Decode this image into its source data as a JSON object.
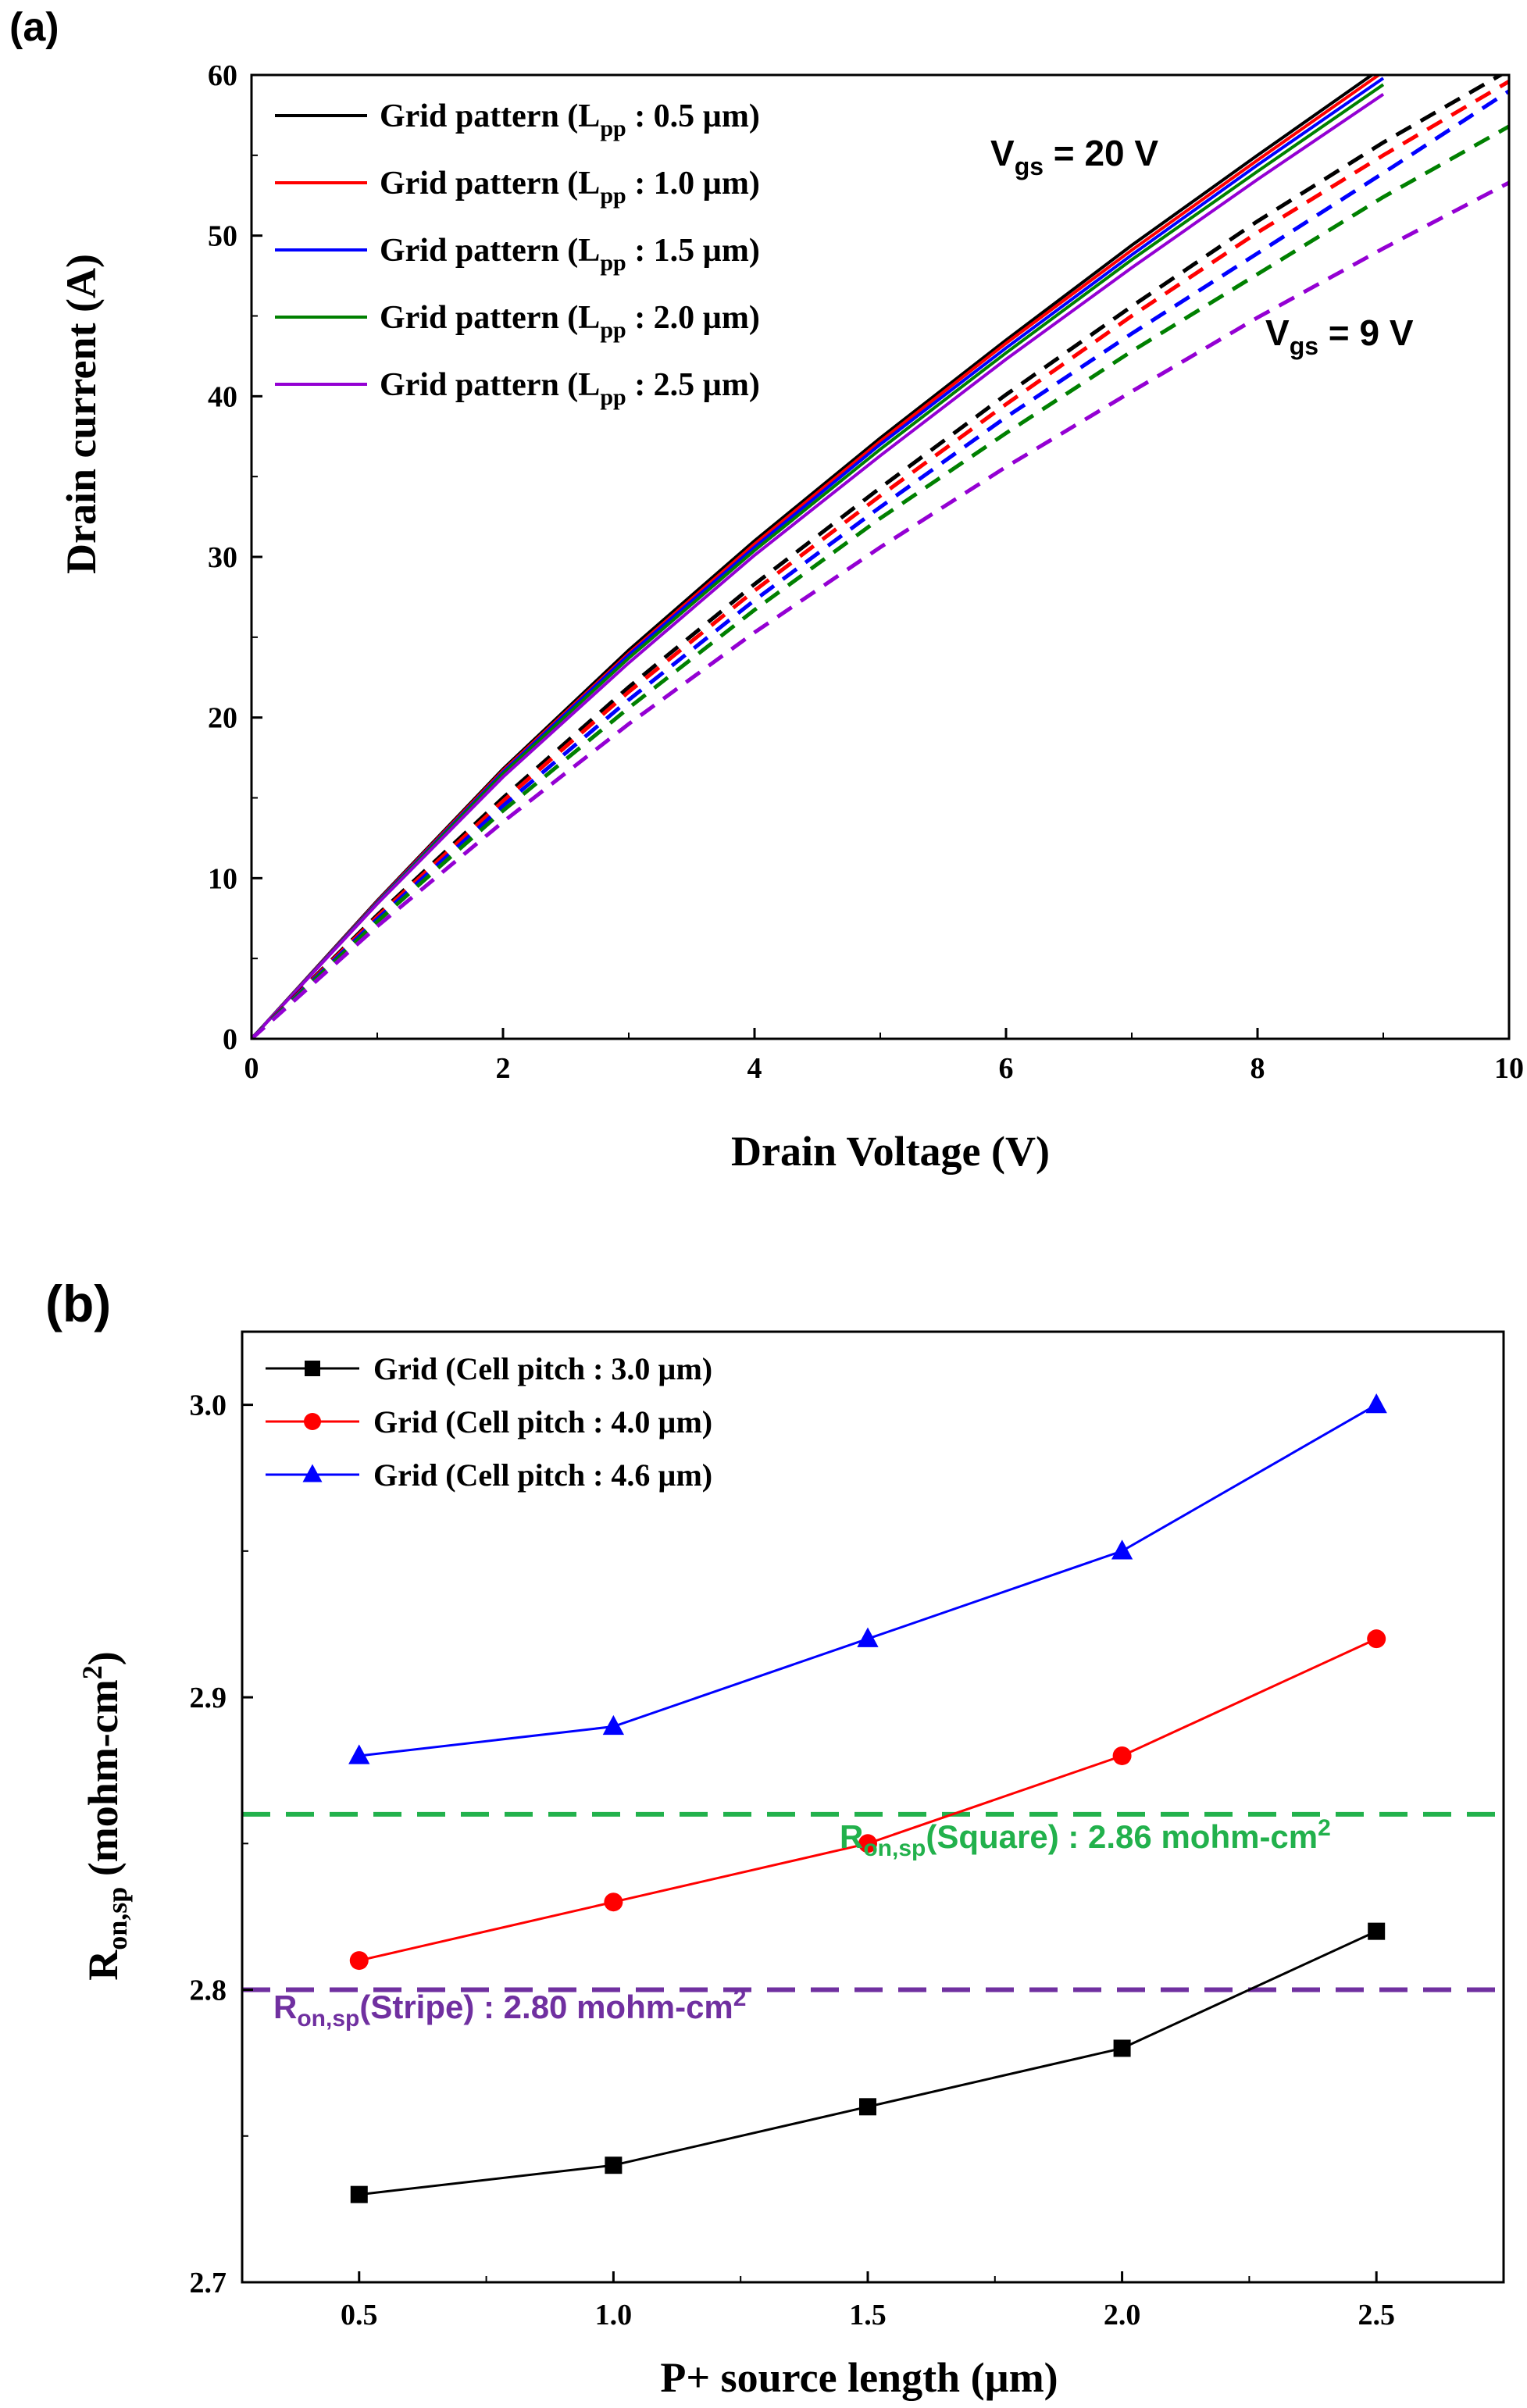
{
  "chart_data": [
    {
      "type": "line",
      "panel_label": "(a)",
      "xlabel": "Drain Voltage (V)",
      "ylabel": "Drain current (A)",
      "xlim": [
        0,
        10
      ],
      "ylim": [
        0,
        60
      ],
      "xticks": [
        "0",
        "2",
        "4",
        "6",
        "8",
        "10"
      ],
      "yticks": [
        "0",
        "10",
        "20",
        "30",
        "40",
        "50",
        "60"
      ],
      "legend_position": "top-left",
      "legend": [
        {
          "prefix": "Grid pattern (L",
          "sub": "pp",
          "suffix": " : 0.5 µm)",
          "color": "#000000"
        },
        {
          "prefix": "Grid pattern (L",
          "sub": "pp",
          "suffix": " : 1.0 µm)",
          "color": "#ff0000"
        },
        {
          "prefix": "Grid pattern (L",
          "sub": "pp",
          "suffix": " : 1.5 µm)",
          "color": "#0000ff"
        },
        {
          "prefix": "Grid pattern (L",
          "sub": "pp",
          "suffix": " : 2.0 µm)",
          "color": "#008000"
        },
        {
          "prefix": "Grid pattern (L",
          "sub": "pp",
          "suffix": " : 2.5 µm)",
          "color": "#9400d3"
        }
      ],
      "annotations": [
        {
          "main": "V",
          "sub": "gs",
          "rest": " = 20 V"
        },
        {
          "main": "V",
          "sub": "gs",
          "rest": " = 9 V"
        }
      ],
      "x": [
        0,
        1,
        2,
        3,
        4,
        5,
        6,
        7,
        8,
        9,
        10
      ],
      "series_vgs20": [
        {
          "name": "Grid pattern (Lpp : 0.5 µm)",
          "color": "#000000",
          "values": [
            0,
            8.6,
            16.8,
            24.2,
            31.0,
            37.4,
            43.5,
            49.4,
            55.0,
            60.5,
            null
          ]
        },
        {
          "name": "Grid pattern (Lpp : 1.0 µm)",
          "color": "#ff0000",
          "values": [
            0,
            8.55,
            16.7,
            24.0,
            30.8,
            37.2,
            43.3,
            49.1,
            54.7,
            60.2,
            null
          ]
        },
        {
          "name": "Grid pattern (Lpp : 1.5 µm)",
          "color": "#0000ff",
          "values": [
            0,
            8.5,
            16.6,
            23.9,
            30.6,
            37.0,
            43.0,
            48.8,
            54.4,
            59.8,
            null
          ]
        },
        {
          "name": "Grid pattern (Lpp : 2.0 µm)",
          "color": "#008000",
          "values": [
            0,
            8.45,
            16.5,
            23.7,
            30.4,
            36.7,
            42.7,
            48.5,
            54.0,
            59.4,
            null
          ]
        },
        {
          "name": "Grid pattern (Lpp : 2.5 µm)",
          "color": "#9400d3",
          "values": [
            0,
            8.4,
            16.3,
            23.4,
            30.1,
            36.3,
            42.3,
            48.0,
            53.5,
            58.8,
            null
          ]
        }
      ],
      "series_vgs9": [
        {
          "name": "Grid pattern (Lpp : 0.5 µm)",
          "color": "#000000",
          "values": [
            0,
            7.7,
            15.0,
            21.9,
            28.3,
            34.3,
            40.1,
            45.6,
            50.9,
            55.8,
            60.3
          ]
        },
        {
          "name": "Grid pattern (Lpp : 1.0 µm)",
          "color": "#ff0000",
          "values": [
            0,
            7.6,
            14.8,
            21.6,
            27.9,
            33.8,
            39.5,
            45.0,
            50.2,
            55.0,
            59.6
          ]
        },
        {
          "name": "Grid pattern (Lpp : 1.5 µm)",
          "color": "#0000ff",
          "values": [
            0,
            7.45,
            14.5,
            21.1,
            27.3,
            33.1,
            38.7,
            43.9,
            48.9,
            53.9,
            59.0
          ]
        },
        {
          "name": "Grid pattern (Lpp : 2.0 µm)",
          "color": "#008000",
          "values": [
            0,
            7.3,
            14.2,
            20.6,
            26.7,
            32.4,
            37.7,
            42.8,
            47.6,
            52.4,
            56.8
          ]
        },
        {
          "name": "Grid pattern (Lpp : 2.5 µm)",
          "color": "#9400d3",
          "values": [
            0,
            7.0,
            13.5,
            19.6,
            25.3,
            30.6,
            35.6,
            40.3,
            44.9,
            49.2,
            53.3
          ]
        }
      ]
    },
    {
      "type": "line",
      "panel_label": "(b)",
      "xlabel": "P+ source length (µm)",
      "ylabel": {
        "main": "R",
        "sub": "on,sp",
        "mid": " (mohm-cm",
        "sup": "2",
        "end": ")"
      },
      "xlim": [
        0.27,
        2.75
      ],
      "ylim": [
        2.7,
        3.025
      ],
      "xticks": [
        "0.5",
        "1.0",
        "1.5",
        "2.0",
        "2.5"
      ],
      "yticks": [
        "2.7",
        "2.8",
        "2.9",
        "3.0"
      ],
      "legend_position": "top-left",
      "x": [
        0.5,
        1.0,
        1.5,
        2.0,
        2.5
      ],
      "series": [
        {
          "name": "Grid (Cell pitch : 3.0 µm)",
          "color": "#000000",
          "marker": "square",
          "values": [
            2.73,
            2.74,
            2.76,
            2.78,
            2.82
          ]
        },
        {
          "name": "Grid (Cell pitch : 4.0 µm)",
          "color": "#ff0000",
          "marker": "circle",
          "values": [
            2.81,
            2.83,
            2.85,
            2.88,
            2.92
          ]
        },
        {
          "name": "Grid (Cell pitch : 4.6 µm)",
          "color": "#0000ff",
          "marker": "triangle",
          "values": [
            2.88,
            2.89,
            2.92,
            2.95,
            3.0
          ]
        }
      ],
      "reference_lines": [
        {
          "value": 2.86,
          "color": "#22b14c",
          "main": "R",
          "sub": "on,sp",
          "rest": "(Square) : 2.86 mohm-cm",
          "sup": "2"
        },
        {
          "value": 2.8,
          "color": "#7030a0",
          "main": "R",
          "sub": "on,sp",
          "rest": "(Stripe) : 2.80 mohm-cm",
          "sup": "2"
        }
      ]
    }
  ]
}
